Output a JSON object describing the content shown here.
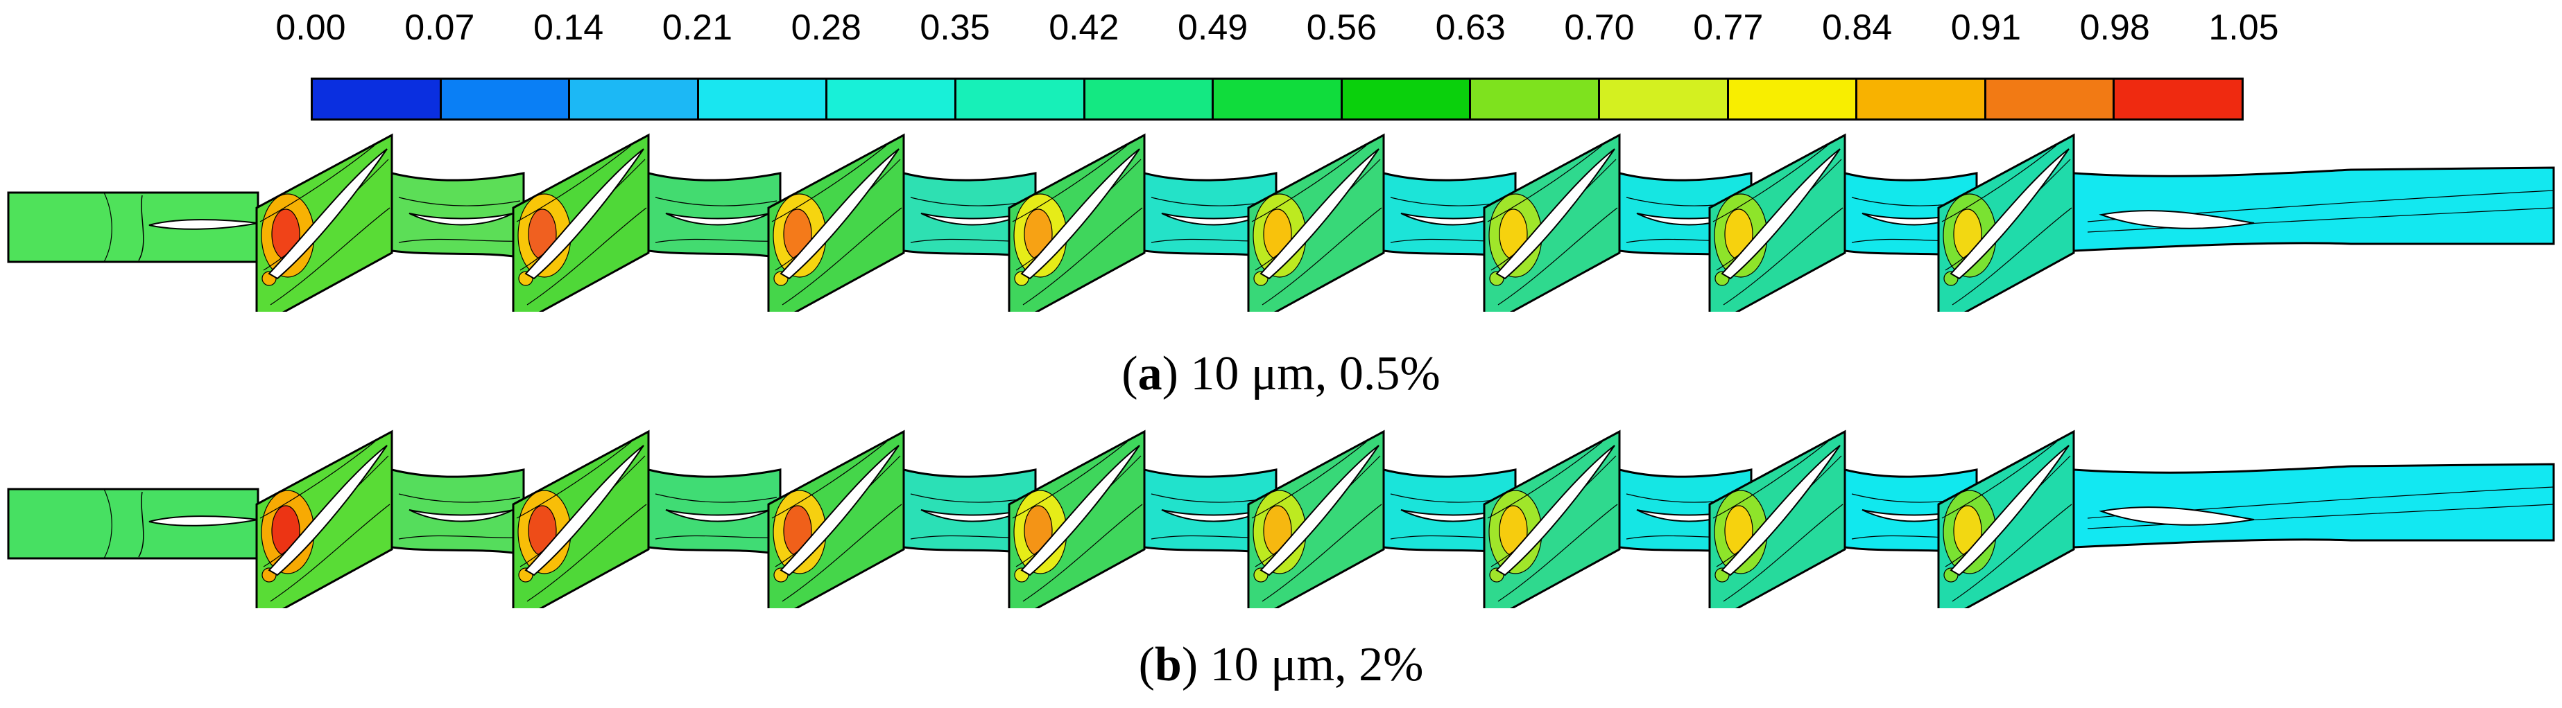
{
  "legend": {
    "ticks": [
      "0.00",
      "0.07",
      "0.14",
      "0.21",
      "0.28",
      "0.35",
      "0.42",
      "0.49",
      "0.56",
      "0.63",
      "0.70",
      "0.77",
      "0.84",
      "0.91",
      "0.98",
      "1.05"
    ],
    "colors": [
      "#0a2fe0",
      "#0a7ff5",
      "#1cb8f5",
      "#19e6f0",
      "#18f0d8",
      "#17f0b8",
      "#14e882",
      "#10dc3c",
      "#0ad00c",
      "#7ee21e",
      "#d4f020",
      "#f8ee00",
      "#f8b200",
      "#f27a14",
      "#ef2a10"
    ]
  },
  "diagram": {
    "panels": [
      {
        "id": "a",
        "caption_letter": "a",
        "caption_rest": " 10 μm, 0.5%",
        "stages": [
          {
            "inlet": "#4fe25a"
          },
          {
            "rotor": "#59dc36",
            "hot": "#f04318",
            "warm": "#f7b203",
            "stator": "#5cde57"
          },
          {
            "rotor": "#4fd838",
            "hot": "#f06020",
            "warm": "#f8c608",
            "stator": "#43db70"
          },
          {
            "rotor": "#45d64a",
            "hot": "#f47a1a",
            "warm": "#f6d510",
            "stator": "#2ee0b2"
          },
          {
            "rotor": "#3fd65c",
            "hot": "#f7a214",
            "warm": "#e6ec18",
            "stator": "#24e2c8"
          },
          {
            "rotor": "#38d878",
            "hot": "#f8c20c",
            "warm": "#bdea20",
            "stator": "#1ce4d8"
          },
          {
            "rotor": "#2fd98e",
            "hot": "#f6d20e",
            "warm": "#a0e62a",
            "stator": "#16e6e2"
          },
          {
            "rotor": "#26da9c",
            "hot": "#f6d20e",
            "warm": "#8ee42a",
            "stator": "#12e8ec"
          },
          {
            "rotor": "#20dbaa",
            "hot": "#f2d812",
            "warm": "#7ae232",
            "outlet": "#13e8f0"
          }
        ]
      },
      {
        "id": "b",
        "caption_letter": "b",
        "caption_rest": " 10 μm, 2%",
        "stages": [
          {
            "inlet": "#47e062"
          },
          {
            "rotor": "#59dc36",
            "hot": "#ec3414",
            "warm": "#f7aa03",
            "stator": "#55dd5c"
          },
          {
            "rotor": "#4fd838",
            "hot": "#ee4c18",
            "warm": "#f8be08",
            "stator": "#40dc74"
          },
          {
            "rotor": "#45d64a",
            "hot": "#f0601a",
            "warm": "#f6d010",
            "stator": "#2be0b6"
          },
          {
            "rotor": "#3fd65c",
            "hot": "#f49416",
            "warm": "#e6ec18",
            "stator": "#21e2cc"
          },
          {
            "rotor": "#38d878",
            "hot": "#f6b810",
            "warm": "#bdea20",
            "stator": "#1ae4da"
          },
          {
            "rotor": "#2fd98e",
            "hot": "#f6cc0e",
            "warm": "#a0e62a",
            "stator": "#15e6e4"
          },
          {
            "rotor": "#26da9c",
            "hot": "#f6d20e",
            "warm": "#8ee42a",
            "stator": "#11e8ee"
          },
          {
            "rotor": "#20dbaa",
            "hot": "#f2d812",
            "warm": "#7ae232",
            "outlet": "#12e8f2"
          }
        ]
      }
    ]
  },
  "captions": {
    "a_letter": "a",
    "a_rest": " 10 μm, 0.5%",
    "b_letter": "b",
    "b_rest": " 10 μm, 2%"
  }
}
